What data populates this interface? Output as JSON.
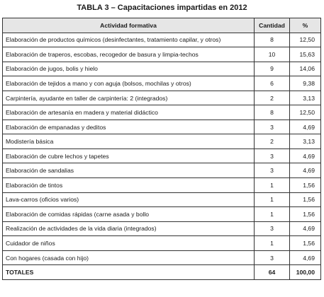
{
  "title": "TABLA 3 –  Capacitaciones impartidas en 2012",
  "headers": {
    "activity": "Actividad  formativa",
    "count": "Cantidad",
    "percent": "%"
  },
  "rows": [
    {
      "activity": "Elaboración de productos químicos (desinfectantes, tratamiento capilar, y otros)",
      "count": "8",
      "percent": "12,50"
    },
    {
      "activity": "Elaboración de traperos, escobas, recogedor de basura y limpia-techos",
      "count": "10",
      "percent": "15,63"
    },
    {
      "activity": "Elaboración de jugos, bolis y hielo",
      "count": "9",
      "percent": "14,06"
    },
    {
      "activity": "Elaboración de tejidos a mano y con aguja (bolsos, mochilas y otros)",
      "count": "6",
      "percent": "9,38"
    },
    {
      "activity": "Carpintería, ayudante en taller de carpintería: 2 (integrados)",
      "count": "2",
      "percent": "3,13"
    },
    {
      "activity": "Elaboración de artesanía en madera y material didáctico",
      "count": "8",
      "percent": "12,50"
    },
    {
      "activity": "Elaboración de empanadas y deditos",
      "count": "3",
      "percent": "4,69"
    },
    {
      "activity": "Modistería básica",
      "count": "2",
      "percent": "3,13"
    },
    {
      "activity": "Elaboración de cubre lechos y tapetes",
      "count": "3",
      "percent": "4,69"
    },
    {
      "activity": "Elaboración de sandalias",
      "count": "3",
      "percent": "4,69"
    },
    {
      "activity": "Elaboración de tintos",
      "count": "1",
      "percent": "1,56"
    },
    {
      "activity": "Lava-carros (oficios varios)",
      "count": "1",
      "percent": "1,56"
    },
    {
      "activity": "Elaboración de comidas rápidas (carne asada y bollo",
      "count": "1",
      "percent": "1,56"
    },
    {
      "activity": "Realización de actividades de la vida diaria (integrados)",
      "count": "3",
      "percent": "4,69"
    },
    {
      "activity": "Cuidador de niños",
      "count": "1",
      "percent": "1,56"
    },
    {
      "activity": "Con hogares (casada con hijo)",
      "count": "3",
      "percent": "4,69"
    }
  ],
  "totals": {
    "label": "TOTALES",
    "count": "64",
    "percent": "100,00"
  }
}
